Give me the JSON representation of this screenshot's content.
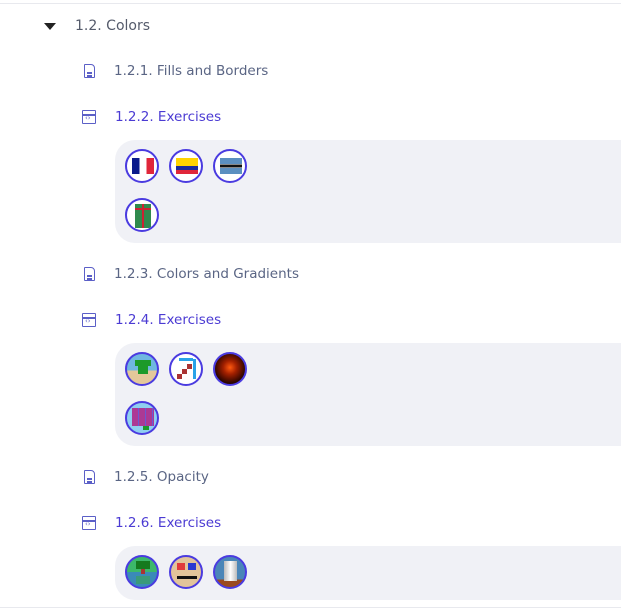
{
  "section": {
    "title": "1.2. Colors",
    "expanded": true
  },
  "items": [
    {
      "type": "lesson",
      "label": "1.2.1. Fills and Borders",
      "icon": "document-icon"
    },
    {
      "type": "exercise",
      "label": "1.2.2. Exercises",
      "icon": "code-window-icon",
      "thumbnails": [
        "france-flag",
        "colombia-flag",
        "botswana-flag",
        "green-gift"
      ]
    },
    {
      "type": "lesson",
      "label": "1.2.3. Colors and Gradients",
      "icon": "document-icon"
    },
    {
      "type": "exercise",
      "label": "1.2.4. Exercises",
      "icon": "code-window-icon",
      "thumbnails": [
        "green-pipe",
        "staircase",
        "glowing-sun",
        "grid-flag"
      ]
    },
    {
      "type": "lesson",
      "label": "1.2.5. Opacity",
      "icon": "document-icon"
    },
    {
      "type": "exercise",
      "label": "1.2.6. Exercises",
      "icon": "code-window-icon",
      "thumbnails": [
        "tree-reflection",
        "face-eyes",
        "gray-pillar"
      ]
    }
  ],
  "colors": {
    "accent": "#4b3bd3",
    "lesson_text": "#5a6584",
    "box_bg": "#f0f1f6",
    "thumb_border": "#4a3be0"
  }
}
